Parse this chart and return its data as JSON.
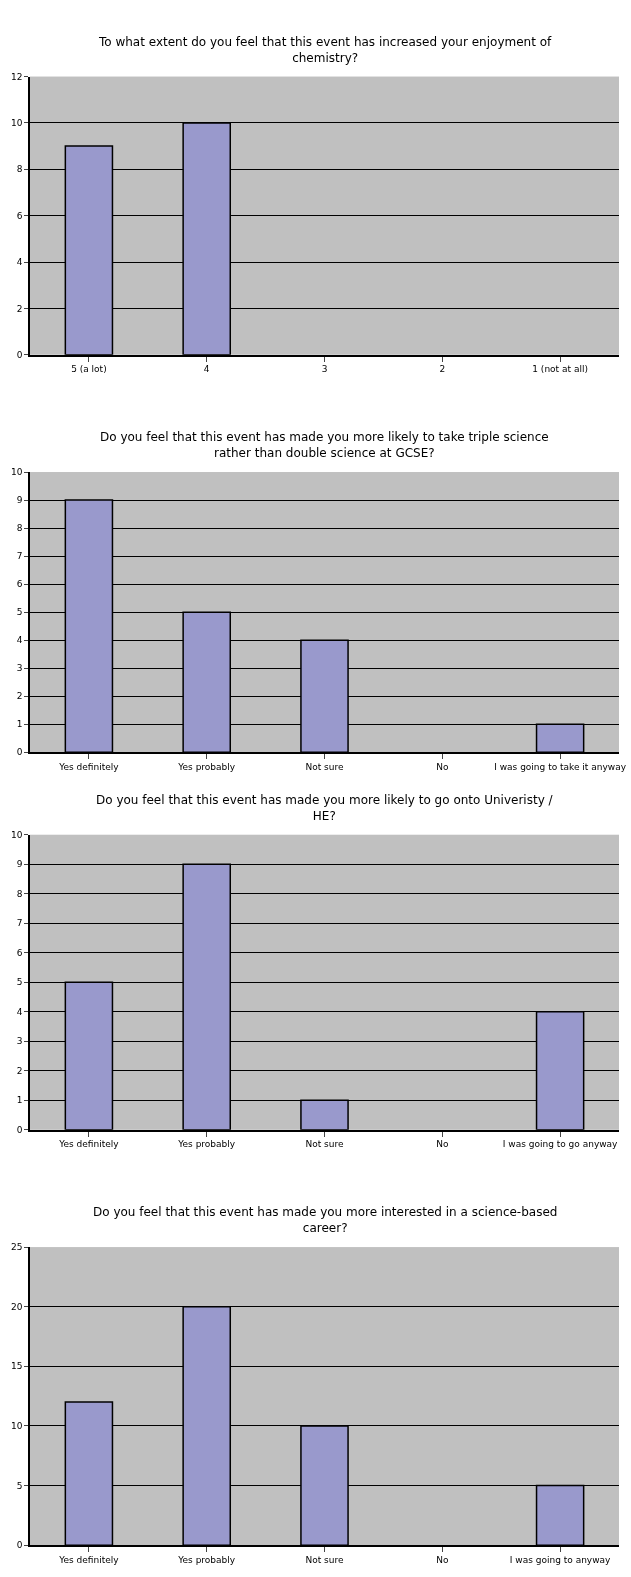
{
  "chart_data": [
    {
      "type": "bar",
      "title": "To what extent do you feel that this event has increased your enjoyment of chemistry?",
      "categories": [
        "5 (a lot)",
        "4",
        "3",
        "2",
        "1 (not at all)"
      ],
      "values": [
        9,
        10,
        0,
        0,
        0
      ],
      "color": "#9999cc",
      "ylim": [
        0,
        12
      ],
      "yticks": [
        0,
        2,
        4,
        6,
        8,
        10,
        12
      ],
      "grid": "y"
    },
    {
      "type": "bar",
      "title": "Do you feel that this event has made you more likely to take triple science rather than double science at GCSE?",
      "categories": [
        "Yes definitely",
        "Yes probably",
        "Not sure",
        "No",
        "I was going to take it anyway"
      ],
      "values": [
        9,
        5,
        4,
        0,
        1
      ],
      "color": "#9999cc",
      "ylim": [
        0,
        10
      ],
      "yticks": [
        0,
        1,
        2,
        3,
        4,
        5,
        6,
        7,
        8,
        9,
        10
      ],
      "grid": "y"
    },
    {
      "type": "bar",
      "title": "Do you feel that this event has made you more likely to go onto Univeristy / HE?",
      "categories": [
        "Yes definitely",
        "Yes probably",
        "Not sure",
        "No",
        "I was going to go anyway"
      ],
      "values": [
        5,
        9,
        1,
        0,
        4
      ],
      "color": "#9999cc",
      "ylim": [
        0,
        10
      ],
      "yticks": [
        0,
        1,
        2,
        3,
        4,
        5,
        6,
        7,
        8,
        9,
        10
      ],
      "grid": "y"
    },
    {
      "type": "bar",
      "title": "Do you feel that this event has made you more interested in a science-based career?",
      "categories": [
        "Yes definitely",
        "Yes probably",
        "Not sure",
        "No",
        "I was going to anyway"
      ],
      "values": [
        12,
        20,
        10,
        0,
        5
      ],
      "color": "#9999cc",
      "ylim": [
        0,
        25
      ],
      "yticks": [
        0,
        5,
        10,
        15,
        20,
        25
      ],
      "grid": "y"
    }
  ]
}
